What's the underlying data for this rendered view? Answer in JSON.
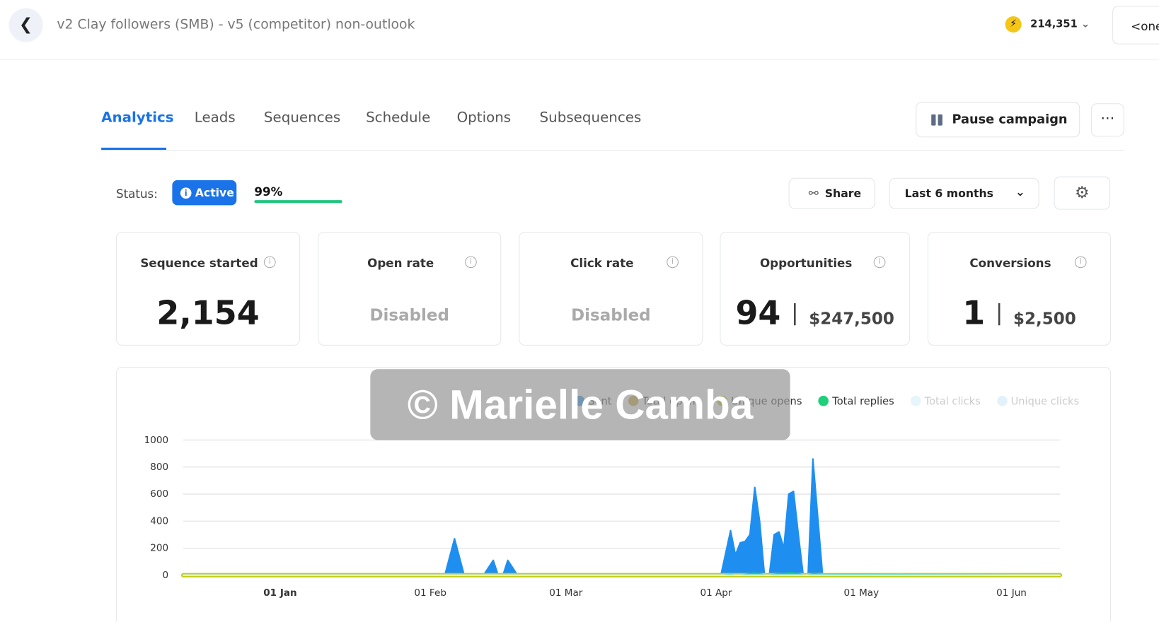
{
  "header": {
    "title": "v2 Clay followers (SMB) - v5 (competitor) non-outlook",
    "credits": "214,351",
    "account": "<one"
  },
  "tabs": [
    "Analytics",
    "Leads",
    "Sequences",
    "Schedule",
    "Options",
    "Subsequences"
  ],
  "actions": {
    "pause": "Pause campaign"
  },
  "status": {
    "label": "Status:",
    "state": "Active",
    "progress": "99%"
  },
  "toolbar": {
    "share": "Share",
    "range": "Last 6 months"
  },
  "stats": [
    {
      "label": "Sequence started",
      "value": "2,154"
    },
    {
      "label": "Open rate",
      "value": "Disabled"
    },
    {
      "label": "Click rate",
      "value": "Disabled"
    },
    {
      "label": "Opportunities",
      "value": "94",
      "amount": "$247,500"
    },
    {
      "label": "Conversions",
      "value": "1",
      "amount": "$2,500"
    }
  ],
  "watermark": "© Marielle Camba",
  "chart_data": {
    "type": "area",
    "x": [
      -19,
      35,
      37,
      39,
      43,
      45,
      46,
      47,
      48,
      50,
      90,
      92,
      94,
      95,
      96,
      97,
      98,
      99,
      100,
      101,
      102,
      103,
      104,
      105,
      106,
      107,
      108,
      109,
      110,
      111,
      113,
      162
    ],
    "xlim": [
      -19,
      162
    ],
    "xticks": [
      {
        "value": 1,
        "label": "01 Jan"
      },
      {
        "value": 32,
        "label": "01 Feb"
      },
      {
        "value": 60,
        "label": "01 Mar"
      },
      {
        "value": 91,
        "label": "01 Apr"
      },
      {
        "value": 121,
        "label": "01 May"
      },
      {
        "value": 152,
        "label": "01 Jun"
      }
    ],
    "ylim": [
      0,
      1000
    ],
    "yticks": [
      0,
      200,
      400,
      600,
      800,
      1000
    ],
    "grid": true,
    "series": [
      {
        "name": "Sent",
        "color": "#1e8ff0",
        "values": [
          0,
          0,
          270,
          0,
          0,
          110,
          0,
          0,
          110,
          0,
          0,
          0,
          330,
          150,
          240,
          250,
          300,
          650,
          400,
          0,
          0,
          300,
          320,
          200,
          600,
          620,
          300,
          0,
          0,
          860,
          0,
          0
        ]
      },
      {
        "name": "Total opens",
        "color": "#c9a83c",
        "values": [
          0,
          0,
          0,
          0,
          0,
          0,
          0,
          0,
          0,
          0,
          0,
          0,
          0,
          0,
          0,
          0,
          0,
          0,
          0,
          0,
          0,
          0,
          0,
          0,
          0,
          0,
          0,
          0,
          0,
          0,
          0,
          0
        ]
      },
      {
        "name": "Unique opens",
        "color": "#c4cc1e",
        "values": [
          0,
          0,
          0,
          0,
          0,
          0,
          0,
          0,
          0,
          0,
          0,
          0,
          0,
          0,
          0,
          0,
          0,
          0,
          0,
          0,
          0,
          0,
          0,
          0,
          0,
          0,
          0,
          0,
          0,
          0,
          0,
          0
        ]
      },
      {
        "name": "Total replies",
        "color": "#1ed07a",
        "values": [
          0,
          0,
          0,
          0,
          0,
          0,
          0,
          0,
          0,
          0,
          0,
          0,
          5,
          0,
          0,
          5,
          10,
          15,
          10,
          0,
          0,
          5,
          10,
          10,
          15,
          15,
          10,
          0,
          0,
          10,
          5,
          0
        ]
      },
      {
        "name": "Total clicks",
        "color": "#e6f5fb",
        "values": [
          0,
          0,
          0,
          0,
          0,
          0,
          0,
          0,
          0,
          0,
          0,
          0,
          0,
          0,
          0,
          0,
          0,
          0,
          0,
          0,
          0,
          0,
          0,
          0,
          0,
          0,
          0,
          0,
          0,
          0,
          0,
          0
        ]
      },
      {
        "name": "Unique clicks",
        "color": "#e3f2fa",
        "values": [
          0,
          0,
          0,
          0,
          0,
          0,
          0,
          0,
          0,
          0,
          0,
          0,
          0,
          0,
          0,
          0,
          0,
          0,
          0,
          0,
          0,
          0,
          0,
          0,
          0,
          0,
          0,
          0,
          0,
          0,
          0,
          0
        ]
      }
    ]
  }
}
